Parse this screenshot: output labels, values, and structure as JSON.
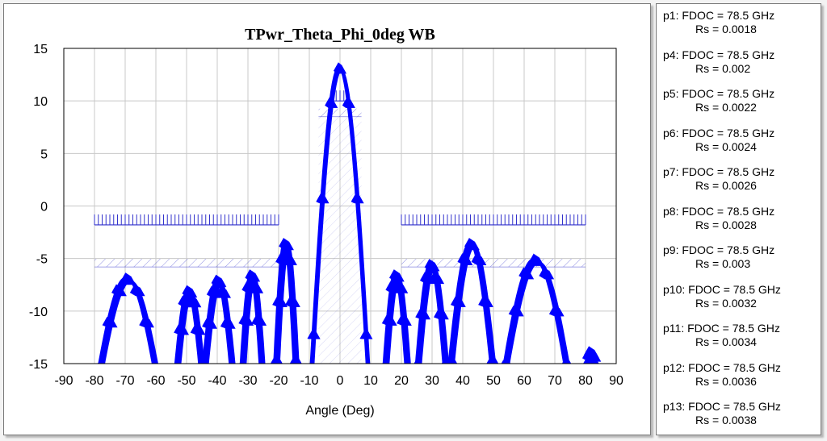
{
  "chart_data": {
    "type": "line",
    "title": "TPwr_Theta_Phi_0deg WB",
    "xlabel": "Angle (Deg)",
    "ylabel": "",
    "xlim": [
      -90,
      90
    ],
    "ylim": [
      -15,
      15
    ],
    "x_ticks": [
      -90,
      -80,
      -70,
      -60,
      -50,
      -40,
      -30,
      -20,
      -10,
      0,
      10,
      20,
      30,
      40,
      50,
      60,
      70,
      80,
      90
    ],
    "y_ticks": [
      -15,
      -10,
      -5,
      0,
      5,
      10,
      15
    ],
    "grid": true,
    "legend_position": "right-panel",
    "line_color": "#0000ff",
    "mask_color": "#3333cc",
    "masks": {
      "sidelobe_upper": [
        {
          "x": [
            -80,
            -20
          ],
          "y": -1.8
        },
        {
          "x": [
            20,
            80
          ],
          "y": -1.8
        }
      ],
      "sidelobe_lower": [
        {
          "x": [
            -80,
            -20
          ],
          "y": -5.8
        },
        {
          "x": [
            20,
            80
          ],
          "y": -5.8
        }
      ],
      "mainlobe_upper": {
        "x": [
          -2.5,
          2.5
        ],
        "y": 10.0
      },
      "mainlobe_lower": {
        "x": [
          -7,
          7
        ],
        "y": 8.5
      }
    },
    "lobes": [
      {
        "center": 0,
        "half_width": 9.5,
        "peak": 13.2
      },
      {
        "center": -17.5,
        "half_width": 3.5,
        "peak": -3.5
      },
      {
        "center": -28.5,
        "half_width": 3.5,
        "peak": -6.5
      },
      {
        "center": -39.5,
        "half_width": 5,
        "peak": -7.0
      },
      {
        "center": -49,
        "half_width": 4.5,
        "peak": -8.0
      },
      {
        "center": -69,
        "half_width": 10,
        "peak": -6.8
      },
      {
        "center": 18.5,
        "half_width": 4,
        "peak": -6.5
      },
      {
        "center": 30,
        "half_width": 5,
        "peak": -5.5
      },
      {
        "center": 43,
        "half_width": 7.5,
        "peak": -3.5
      },
      {
        "center": 64,
        "half_width": 11,
        "peak": -5.0
      },
      {
        "center": 82,
        "half_width": 2,
        "peak": -13.8
      }
    ],
    "series": [
      {
        "name": "p1",
        "fdoc": "FDOC = 78.5 GHz",
        "rs": "Rs = 0.0018",
        "scale": 1.0
      },
      {
        "name": "p4",
        "fdoc": "FDOC = 78.5 GHz",
        "rs": "Rs = 0.002",
        "scale": 0.99
      },
      {
        "name": "p5",
        "fdoc": "FDOC = 78.5 GHz",
        "rs": "Rs = 0.0022",
        "scale": 0.98
      },
      {
        "name": "p6",
        "fdoc": "FDOC = 78.5 GHz",
        "rs": "Rs = 0.0024",
        "scale": 0.97
      },
      {
        "name": "p7",
        "fdoc": "FDOC = 78.5 GHz",
        "rs": "Rs = 0.0026",
        "scale": 0.96
      },
      {
        "name": "p8",
        "fdoc": "FDOC = 78.5 GHz",
        "rs": "Rs = 0.0028",
        "scale": 0.95
      },
      {
        "name": "p9",
        "fdoc": "FDOC = 78.5 GHz",
        "rs": "Rs = 0.003",
        "scale": 0.94
      },
      {
        "name": "p10",
        "fdoc": "FDOC = 78.5 GHz",
        "rs": "Rs = 0.0032",
        "scale": 0.93
      },
      {
        "name": "p11",
        "fdoc": "FDOC = 78.5 GHz",
        "rs": "Rs = 0.0034",
        "scale": 0.92
      },
      {
        "name": "p12",
        "fdoc": "FDOC = 78.5 GHz",
        "rs": "Rs = 0.0036",
        "scale": 0.91
      },
      {
        "name": "p13",
        "fdoc": "FDOC = 78.5 GHz",
        "rs": "Rs = 0.0038",
        "scale": 0.9
      }
    ]
  }
}
